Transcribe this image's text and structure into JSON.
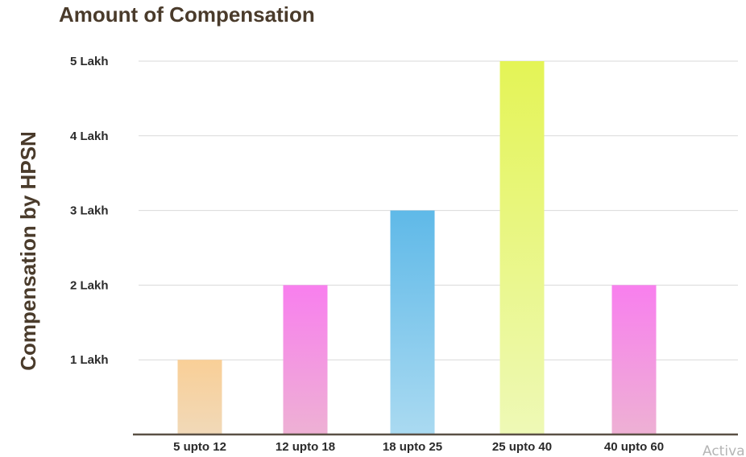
{
  "chart_data": {
    "type": "bar",
    "title": "Amount of Compensation",
    "xlabel": "",
    "ylabel": "Compensation by HPSN",
    "categories": [
      "5 upto 12",
      "12 upto 18",
      "18 upto 25",
      "25 upto 40",
      "40 upto 60"
    ],
    "values": [
      1,
      2,
      3,
      5,
      2
    ],
    "ylim": [
      0,
      5
    ],
    "yticks": [
      {
        "value": 1,
        "label": "1 Lakh"
      },
      {
        "value": 2,
        "label": "2 Lakh"
      },
      {
        "value": 3,
        "label": "3 Lakh"
      },
      {
        "value": 4,
        "label": "4 Lakh"
      },
      {
        "value": 5,
        "label": "5 Lakh"
      }
    ],
    "grid": true,
    "bar_colors": [
      [
        "#f9cf97",
        "#f1d9b8"
      ],
      [
        "#f87fee",
        "#eeb1d4"
      ],
      [
        "#5fb9e8",
        "#aadaf1"
      ],
      [
        "#e4f456",
        "#eef9b6"
      ],
      [
        "#f87fee",
        "#eeb1d4"
      ]
    ]
  },
  "watermark": "Activa"
}
